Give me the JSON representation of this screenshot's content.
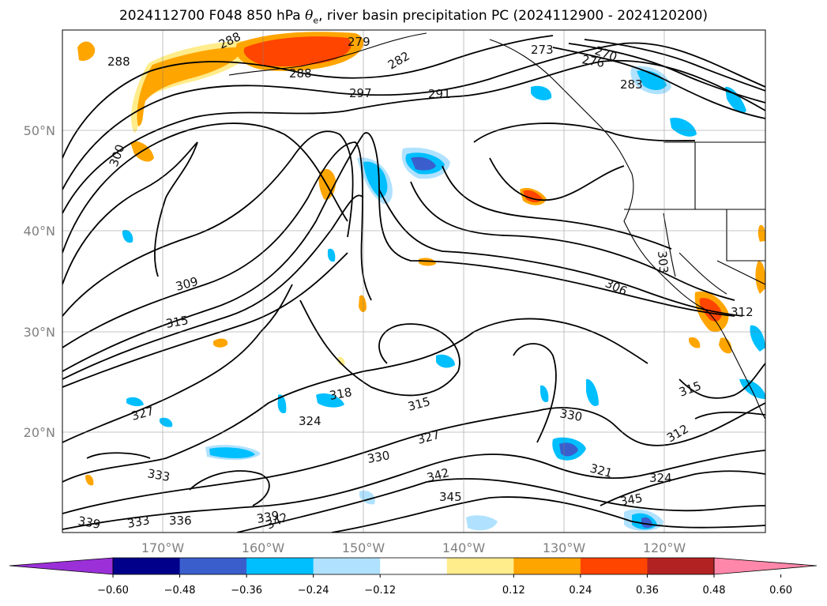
{
  "title": {
    "prefix": "2024112700 F048 850 hPa ",
    "symbol": "θ",
    "subscript": "e",
    "suffix": ", river basin precipitation PC (2024112900 - 2024120200)"
  },
  "axes": {
    "lat_labels": [
      "50°N",
      "40°N",
      "30°N",
      "20°N"
    ],
    "lon_labels": [
      "170°W",
      "160°W",
      "150°W",
      "140°W",
      "130°W",
      "120°W"
    ]
  },
  "contour_labels": [
    "288",
    "288",
    "279",
    "282",
    "288",
    "297",
    "291",
    "273",
    "270",
    "276",
    "283",
    "300",
    "309",
    "315",
    "306",
    "303",
    "312",
    "318",
    "315",
    "324",
    "327",
    "330",
    "321",
    "324",
    "315",
    "312",
    "327",
    "333",
    "330",
    "342",
    "345",
    "345",
    "339",
    "339",
    "333",
    "336",
    "342"
  ],
  "colorbar": {
    "ticks": [
      "−0.60",
      "−0.48",
      "−0.36",
      "−0.24",
      "−0.12",
      "0.12",
      "0.24",
      "0.36",
      "0.48",
      "0.60"
    ],
    "colors": {
      "under": "#9b30d9",
      "bins": [
        "#00008b",
        "#3a5fcd",
        "#00bfff",
        "#b0e2ff",
        "#ffffff",
        "#ffec8b",
        "#ffa500",
        "#ff4500",
        "#b22222"
      ],
      "over": "#ff88aa"
    }
  },
  "shading_colors": {
    "light_blue": "#b0e2ff",
    "blue": "#00bfff",
    "dark_blue": "#3a5fcd",
    "light_yellow": "#ffec8b",
    "orange": "#ffa500",
    "red_orange": "#ff4500"
  }
}
